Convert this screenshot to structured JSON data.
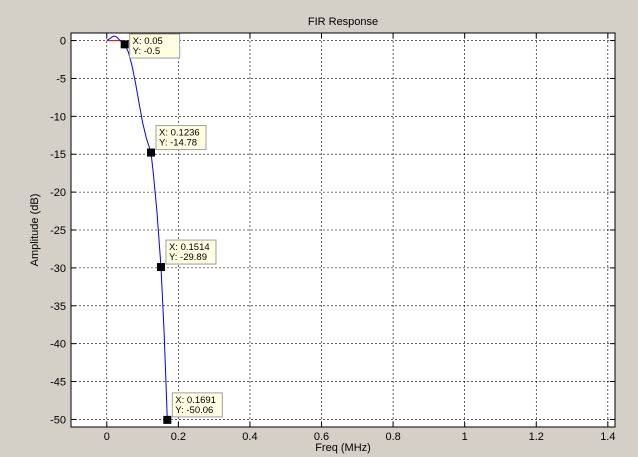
{
  "chart_data": {
    "type": "line",
    "title": "FIR Response",
    "xlabel": "Freq (MHz)",
    "ylabel": "Amplitude (dB)",
    "xlim": [
      -0.1,
      1.42
    ],
    "ylim": [
      -51,
      1
    ],
    "x_ticks": [
      0,
      0.2,
      0.4,
      0.6,
      0.8,
      1,
      1.2,
      1.4
    ],
    "x_tick_labels": [
      "0",
      "0.2",
      "0.4",
      "0.6",
      "0.8",
      "1",
      "1.2",
      "1.4"
    ],
    "y_ticks": [
      0,
      -5,
      -10,
      -15,
      -20,
      -25,
      -30,
      -35,
      -40,
      -45,
      -50
    ],
    "y_tick_labels": [
      "0",
      "-5",
      "-10",
      "-15",
      "-20",
      "-25",
      "-30",
      "-35",
      "-40",
      "-45",
      "-50"
    ],
    "grid": true,
    "series": [
      {
        "color": "#0000ff",
        "x": [
          0,
          0.005,
          0.01,
          0.015,
          0.02,
          0.025,
          0.03,
          0.035,
          0.04,
          0.045,
          0.05,
          0.06,
          0.07,
          0.08,
          0.09,
          0.1,
          0.11,
          0.1236,
          0.13,
          0.14,
          0.1514,
          0.155,
          0.16,
          0.165,
          0.1691
        ],
        "y": [
          0.05,
          0.15,
          0.3,
          0.5,
          0.6,
          0.55,
          0.35,
          0.1,
          -0.1,
          -0.3,
          -0.5,
          -1.5,
          -3.2,
          -5.5,
          -8.2,
          -10.8,
          -12.8,
          -14.78,
          -17.5,
          -22.5,
          -29.89,
          -33.5,
          -38.5,
          -44.5,
          -50.06
        ]
      }
    ],
    "reference_line": {
      "color": "#ff0000",
      "y": 0,
      "x": [
        0,
        0.045
      ]
    },
    "datatips": [
      {
        "x": 0.05,
        "y": -0.5,
        "x_text": "X: 0.05",
        "y_text": "Y: -0.5"
      },
      {
        "x": 0.1236,
        "y": -14.78,
        "x_text": "X: 0.1236",
        "y_text": "Y: -14.78"
      },
      {
        "x": 0.1514,
        "y": -29.89,
        "x_text": "X: 0.1514",
        "y_text": "Y: -29.89"
      },
      {
        "x": 0.1691,
        "y": -50.06,
        "x_text": "X: 0.1691",
        "y_text": "Y: -50.06"
      }
    ]
  }
}
